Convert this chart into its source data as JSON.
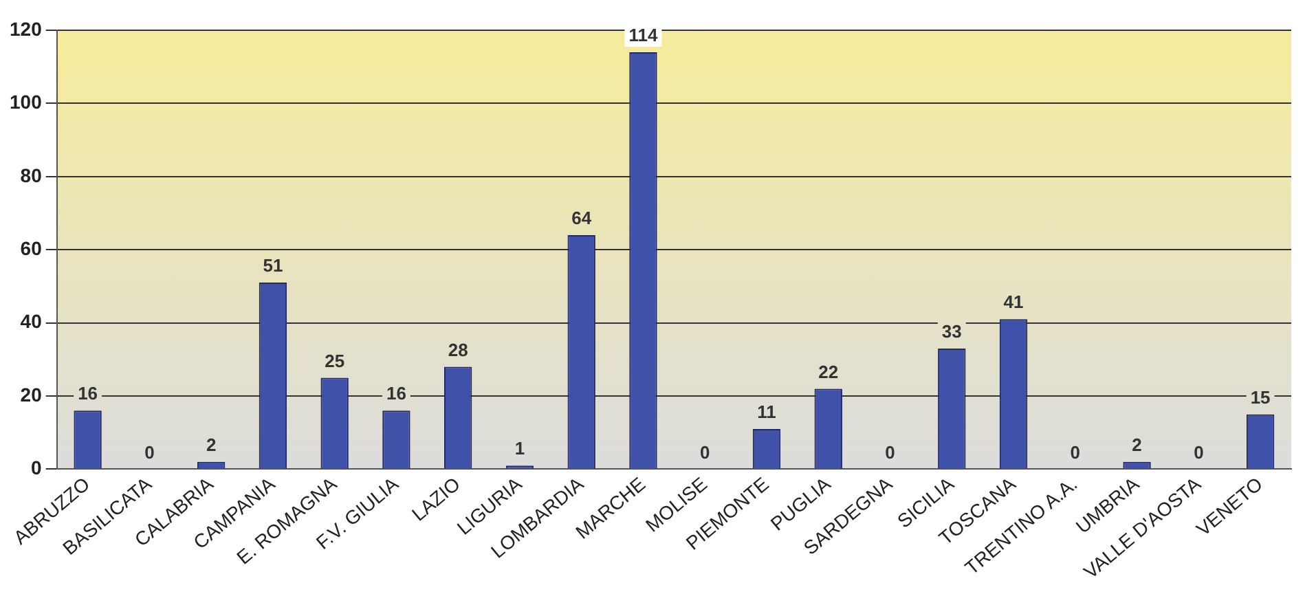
{
  "chart_data": {
    "type": "bar",
    "categories": [
      "ABRUZZO",
      "BASILICATA",
      "CALABRIA",
      "CAMPANIA",
      "E. ROMAGNA",
      "F.V. GIULIA",
      "LAZIO",
      "LIGURIA",
      "LOMBARDIA",
      "MARCHE",
      "MOLISE",
      "PIEMONTE",
      "PUGLIA",
      "SARDEGNA",
      "SICILIA",
      "TOSCANA",
      "TRENTINO A.A.",
      "UMBRIA",
      "VALLE D'AOSTA",
      "VENETO"
    ],
    "values": [
      16,
      0,
      2,
      51,
      25,
      16,
      28,
      1,
      64,
      114,
      0,
      11,
      22,
      0,
      33,
      41,
      0,
      2,
      0,
      15
    ],
    "color": "#3f51a8",
    "ylim": [
      0,
      120
    ],
    "yticks": [
      0,
      20,
      40,
      60,
      80,
      100,
      120
    ],
    "grid": "y",
    "data_labels": true,
    "legend": false
  }
}
